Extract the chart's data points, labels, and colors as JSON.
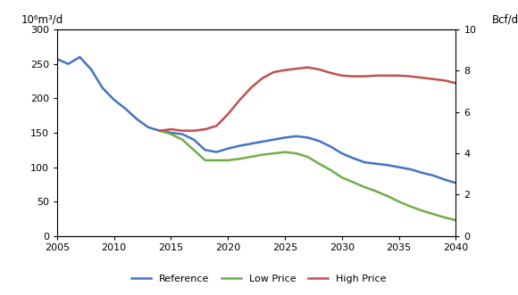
{
  "reference": {
    "x": [
      2005,
      2006,
      2007,
      2008,
      2009,
      2010,
      2011,
      2012,
      2013,
      2014,
      2015,
      2016,
      2017,
      2018,
      2019,
      2020,
      2021,
      2022,
      2023,
      2024,
      2025,
      2026,
      2027,
      2028,
      2029,
      2030,
      2031,
      2032,
      2033,
      2034,
      2035,
      2036,
      2037,
      2038,
      2039,
      2040
    ],
    "y": [
      257,
      250,
      260,
      242,
      215,
      198,
      185,
      170,
      158,
      153,
      150,
      148,
      140,
      125,
      122,
      127,
      131,
      134,
      137,
      140,
      143,
      145,
      143,
      138,
      130,
      120,
      113,
      107,
      105,
      103,
      100,
      97,
      92,
      88,
      82,
      77
    ],
    "color": "#4472C4",
    "label": "Reference"
  },
  "low_price": {
    "x": [
      2014,
      2015,
      2016,
      2017,
      2018,
      2019,
      2020,
      2021,
      2022,
      2023,
      2024,
      2025,
      2026,
      2027,
      2028,
      2029,
      2030,
      2031,
      2032,
      2033,
      2034,
      2035,
      2036,
      2037,
      2038,
      2039,
      2040
    ],
    "y": [
      153,
      148,
      140,
      125,
      110,
      110,
      110,
      112,
      115,
      118,
      120,
      122,
      120,
      115,
      105,
      96,
      85,
      78,
      71,
      65,
      58,
      50,
      43,
      37,
      32,
      27,
      23
    ],
    "color": "#70AD47",
    "label": "Low Price"
  },
  "high_price": {
    "x": [
      2014,
      2015,
      2016,
      2017,
      2018,
      2019,
      2020,
      2021,
      2022,
      2023,
      2024,
      2025,
      2026,
      2027,
      2028,
      2029,
      2030,
      2031,
      2032,
      2033,
      2034,
      2035,
      2036,
      2037,
      2038,
      2039,
      2040
    ],
    "y": [
      153,
      155,
      153,
      153,
      155,
      160,
      177,
      197,
      215,
      229,
      238,
      241,
      243,
      245,
      242,
      237,
      233,
      232,
      232,
      233,
      233,
      233,
      232,
      230,
      228,
      226,
      222
    ],
    "color": "#C0504D",
    "label": "High Price"
  },
  "ylim_left": [
    0,
    300
  ],
  "ylim_right": [
    0,
    10
  ],
  "yticks_left": [
    0,
    50,
    100,
    150,
    200,
    250,
    300
  ],
  "yticks_right": [
    0,
    2,
    4,
    6,
    8,
    10
  ],
  "xlim": [
    2005,
    2040
  ],
  "xticks": [
    2005,
    2010,
    2015,
    2020,
    2025,
    2030,
    2035,
    2040
  ],
  "ylabel_left": "10⁶m³/d",
  "ylabel_right": "Bcf/d",
  "line_width": 1.8,
  "background_color": "#ffffff"
}
